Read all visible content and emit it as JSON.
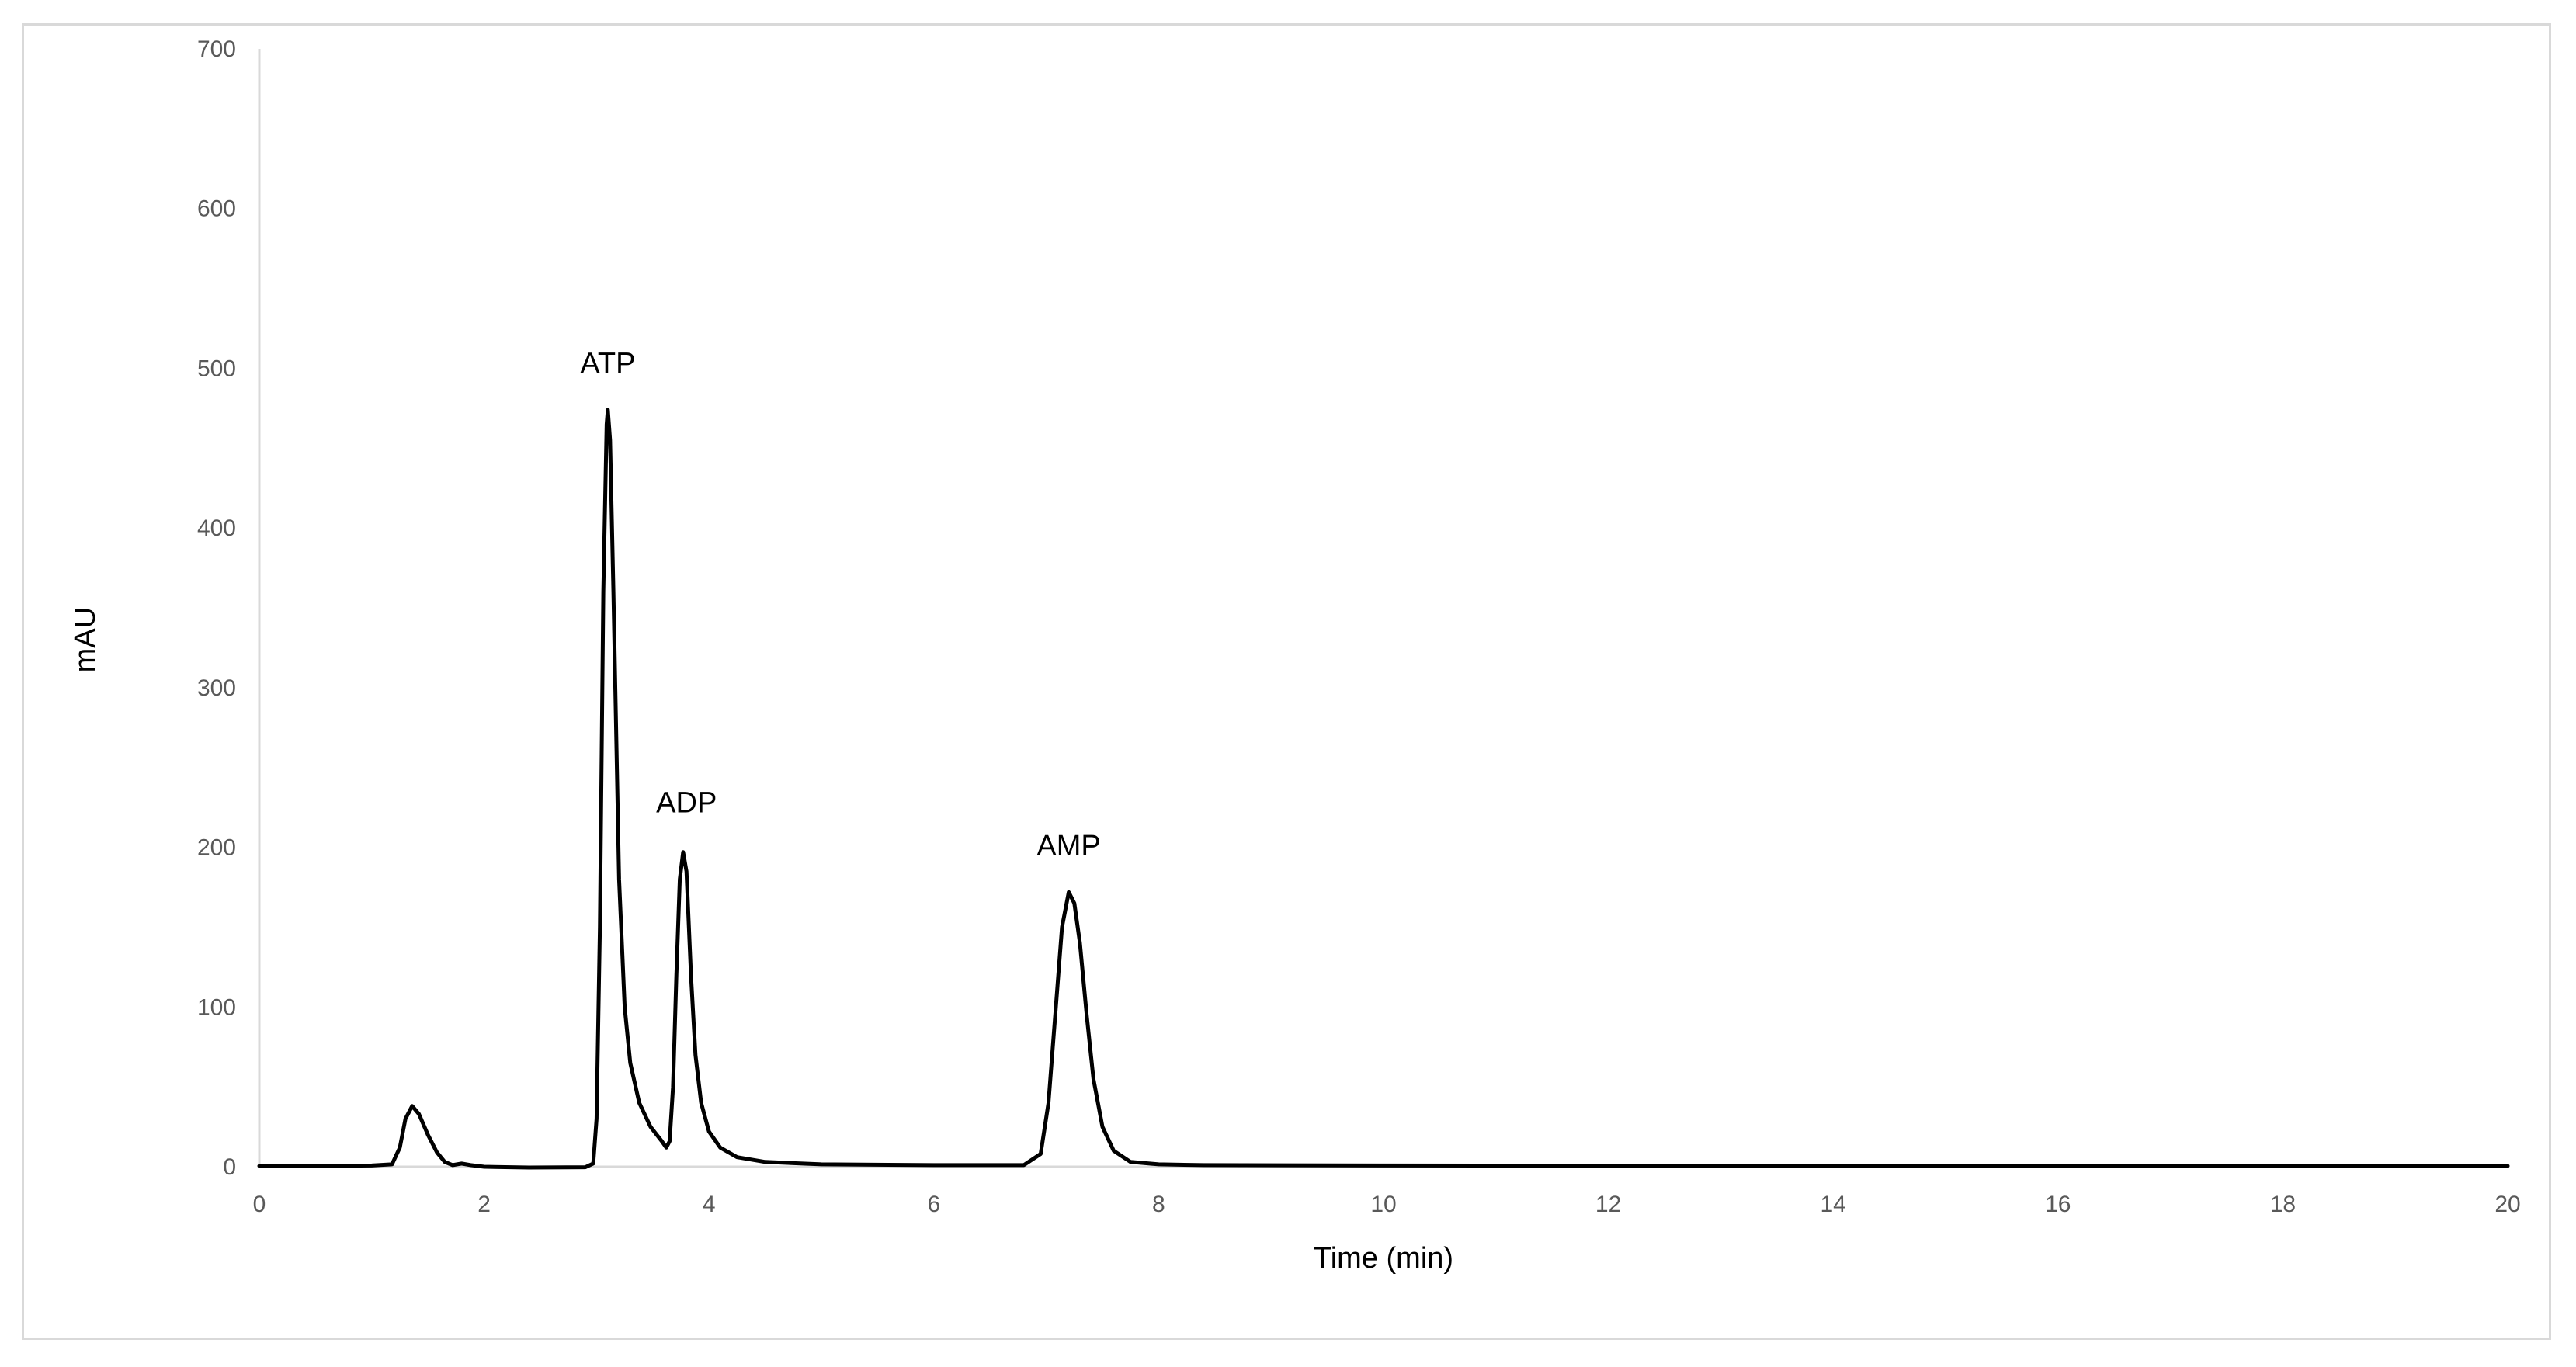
{
  "chart_data": {
    "type": "line",
    "title": "",
    "xlabel": "Time (min)",
    "ylabel": "mAU",
    "xlim": [
      0,
      20
    ],
    "ylim": [
      0,
      700
    ],
    "x_ticks": [
      0,
      2,
      4,
      6,
      8,
      10,
      12,
      14,
      16,
      18,
      20
    ],
    "y_ticks": [
      0,
      100,
      200,
      300,
      400,
      500,
      600,
      700
    ],
    "grid": false,
    "legend": "none",
    "series_color": "#000000",
    "series": [
      {
        "points": [
          [
            0.0,
            0.5
          ],
          [
            0.5,
            0.5
          ],
          [
            1.0,
            0.8
          ],
          [
            1.18,
            1.5
          ],
          [
            1.25,
            12
          ],
          [
            1.3,
            30
          ],
          [
            1.36,
            38
          ],
          [
            1.42,
            33
          ],
          [
            1.5,
            20
          ],
          [
            1.58,
            9
          ],
          [
            1.65,
            3
          ],
          [
            1.72,
            1
          ],
          [
            1.8,
            2
          ],
          [
            1.88,
            1
          ],
          [
            2.0,
            0
          ],
          [
            2.4,
            -0.5
          ],
          [
            2.9,
            -0.3
          ],
          [
            2.97,
            2
          ],
          [
            3.0,
            30
          ],
          [
            3.03,
            150
          ],
          [
            3.06,
            360
          ],
          [
            3.09,
            465
          ],
          [
            3.1,
            474
          ],
          [
            3.12,
            455
          ],
          [
            3.15,
            360
          ],
          [
            3.2,
            180
          ],
          [
            3.25,
            100
          ],
          [
            3.3,
            65
          ],
          [
            3.38,
            40
          ],
          [
            3.48,
            25
          ],
          [
            3.58,
            16
          ],
          [
            3.62,
            12
          ],
          [
            3.65,
            16
          ],
          [
            3.68,
            50
          ],
          [
            3.71,
            120
          ],
          [
            3.74,
            180
          ],
          [
            3.77,
            197
          ],
          [
            3.8,
            185
          ],
          [
            3.84,
            120
          ],
          [
            3.88,
            70
          ],
          [
            3.93,
            40
          ],
          [
            4.0,
            22
          ],
          [
            4.1,
            12
          ],
          [
            4.25,
            6
          ],
          [
            4.5,
            3
          ],
          [
            5.0,
            1.5
          ],
          [
            6.0,
            1
          ],
          [
            6.8,
            1
          ],
          [
            6.95,
            8
          ],
          [
            7.02,
            40
          ],
          [
            7.08,
            95
          ],
          [
            7.14,
            150
          ],
          [
            7.2,
            172
          ],
          [
            7.25,
            165
          ],
          [
            7.3,
            140
          ],
          [
            7.36,
            95
          ],
          [
            7.42,
            55
          ],
          [
            7.5,
            25
          ],
          [
            7.6,
            10
          ],
          [
            7.75,
            3
          ],
          [
            8.0,
            1.5
          ],
          [
            8.4,
            1
          ],
          [
            10.0,
            0.8
          ],
          [
            15.0,
            0.5
          ],
          [
            20.0,
            0.5
          ]
        ]
      }
    ],
    "annotations": [
      {
        "text": "ATP",
        "x": 3.1,
        "y": 497
      },
      {
        "text": "ADP",
        "x": 3.8,
        "y": 222
      },
      {
        "text": "AMP",
        "x": 7.2,
        "y": 195
      }
    ]
  }
}
